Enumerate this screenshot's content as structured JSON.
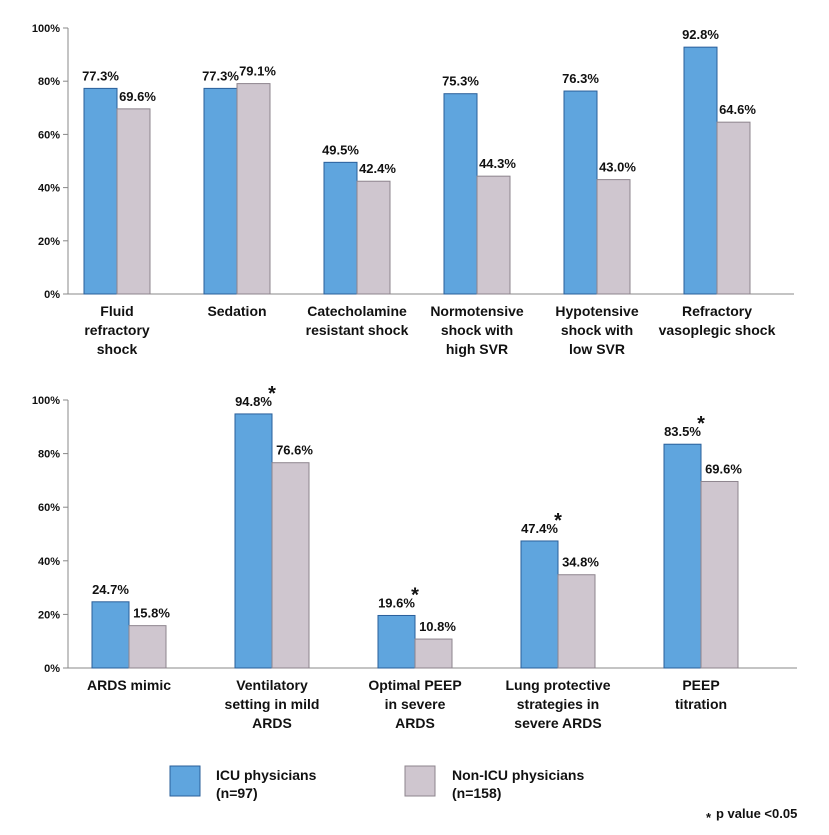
{
  "colors": {
    "icu": "#5fa5de",
    "non_icu": "#cfc6cf",
    "axis": "#888888",
    "text": "#111111",
    "bar_stroke": "#2a5f9a",
    "bar_stroke2": "#8d848d"
  },
  "legend": {
    "icu_line1": "ICU physicians",
    "icu_line2": "(n=97)",
    "non_icu_line1": "Non-ICU physicians",
    "non_icu_line2": "(n=158)"
  },
  "footnote": {
    "star": "*",
    "text": "p value <0.05"
  },
  "chart_data": [
    {
      "type": "bar",
      "ylim": [
        0,
        100
      ],
      "yticks": [
        "0%",
        "20%",
        "40%",
        "60%",
        "80%",
        "100%"
      ],
      "categories": [
        [
          "Fluid",
          "refractory",
          "shock"
        ],
        [
          "Sedation"
        ],
        [
          "Catecholamine",
          "resistant shock"
        ],
        [
          "Normotensive",
          "shock with",
          "high SVR"
        ],
        [
          "Hypotensive",
          "shock with",
          "low SVR"
        ],
        [
          "Refractory",
          "vasoplegic shock"
        ]
      ],
      "series": [
        {
          "name": "ICU physicians (n=97)",
          "values": [
            77.3,
            77.3,
            49.5,
            75.3,
            76.3,
            92.8
          ],
          "labels": [
            "77.3%",
            "77.3%",
            "49.5%",
            "75.3%",
            "76.3%",
            "92.8%"
          ]
        },
        {
          "name": "Non-ICU physicians (n=158)",
          "values": [
            69.6,
            79.1,
            42.4,
            44.3,
            43.0,
            64.6
          ],
          "labels": [
            "69.6%",
            "79.1%",
            "42.4%",
            "44.3%",
            "43.0%",
            "64.6%"
          ]
        }
      ],
      "significant": [
        false,
        false,
        false,
        false,
        false,
        false
      ]
    },
    {
      "type": "bar",
      "ylim": [
        0,
        100
      ],
      "yticks": [
        "0%",
        "20%",
        "40%",
        "60%",
        "80%",
        "100%"
      ],
      "categories": [
        [
          "ARDS mimic"
        ],
        [
          "Ventilatory",
          "setting in mild",
          "ARDS"
        ],
        [
          "Optimal PEEP",
          "in severe",
          "ARDS"
        ],
        [
          "Lung protective",
          "strategies in",
          "severe ARDS"
        ],
        [
          "PEEP",
          "titration"
        ]
      ],
      "series": [
        {
          "name": "ICU physicians (n=97)",
          "values": [
            24.7,
            94.8,
            19.6,
            47.4,
            83.5
          ],
          "labels": [
            "24.7%",
            "94.8%",
            "19.6%",
            "47.4%",
            "83.5%"
          ]
        },
        {
          "name": "Non-ICU physicians (n=158)",
          "values": [
            15.8,
            76.6,
            10.8,
            34.8,
            69.6
          ],
          "labels": [
            "15.8%",
            "76.6%",
            "10.8%",
            "34.8%",
            "69.6%"
          ]
        }
      ],
      "significant": [
        false,
        true,
        true,
        true,
        true
      ],
      "significance_mark": "*"
    }
  ]
}
